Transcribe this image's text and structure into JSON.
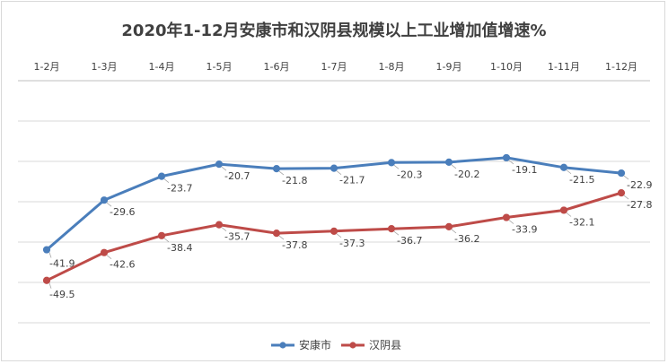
{
  "chart_data": {
    "type": "line",
    "title": "2020年1-12月安康市和汉阴县规模以上工业增加值增速%",
    "categories": [
      "1-2月",
      "1-3月",
      "1-4月",
      "1-5月",
      "1-6月",
      "1-7月",
      "1-8月",
      "1-9月",
      "1-10月",
      "1-11月",
      "1-12月"
    ],
    "series": [
      {
        "name": "安康市",
        "color": "#4a7ebb",
        "values": [
          -41.9,
          -29.6,
          -23.7,
          -20.7,
          -21.8,
          -21.7,
          -20.3,
          -20.2,
          -19.1,
          -21.5,
          -22.9
        ]
      },
      {
        "name": "汉阴县",
        "color": "#be4b48",
        "values": [
          -49.5,
          -42.6,
          -38.4,
          -35.7,
          -37.8,
          -37.3,
          -36.7,
          -36.2,
          -33.9,
          -32.1,
          -27.8
        ]
      }
    ],
    "ylim": [
      -60,
      0
    ],
    "grid": true,
    "x_axis_position": "top",
    "legend": "bottom"
  }
}
